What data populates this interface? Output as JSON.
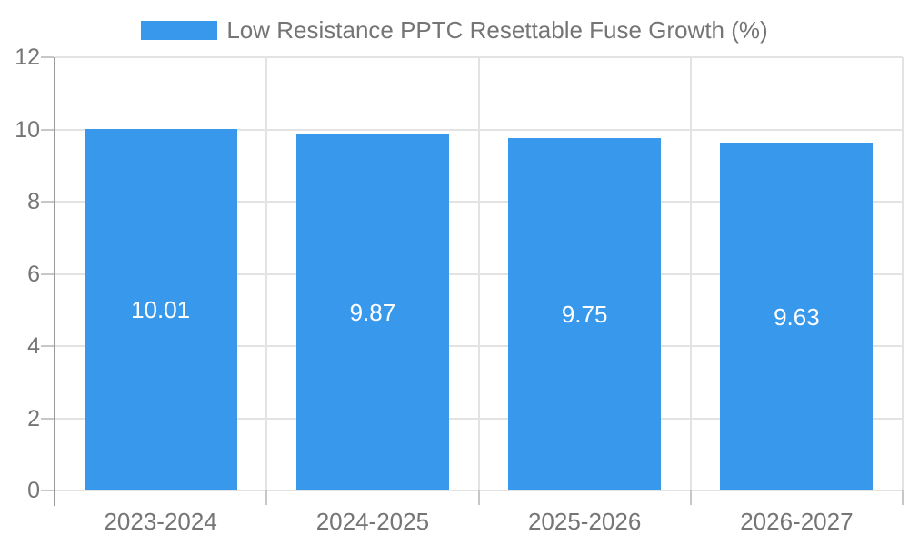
{
  "colors": {
    "bar": "#3898EC",
    "grid": "#e3e3e3",
    "axis": "#9a9a9a",
    "tick": "#c7c7c7",
    "text": "#757575",
    "data_label": "#ffffff",
    "background": "#ffffff"
  },
  "chart_data": {
    "type": "bar",
    "title": "Low Resistance PPTC Resettable Fuse Growth (%)",
    "categories": [
      "2023-2024",
      "2024-2025",
      "2025-2026",
      "2026-2027"
    ],
    "values": [
      10.01,
      9.87,
      9.75,
      9.63
    ],
    "value_labels": [
      "10.01",
      "9.87",
      "9.75",
      "9.63"
    ],
    "xlabel": "",
    "ylabel": "",
    "ylim": [
      0,
      12
    ],
    "yticks": [
      0,
      2,
      4,
      6,
      8,
      10,
      12
    ],
    "grid": true,
    "legend_position": "top",
    "data_labels": true
  }
}
